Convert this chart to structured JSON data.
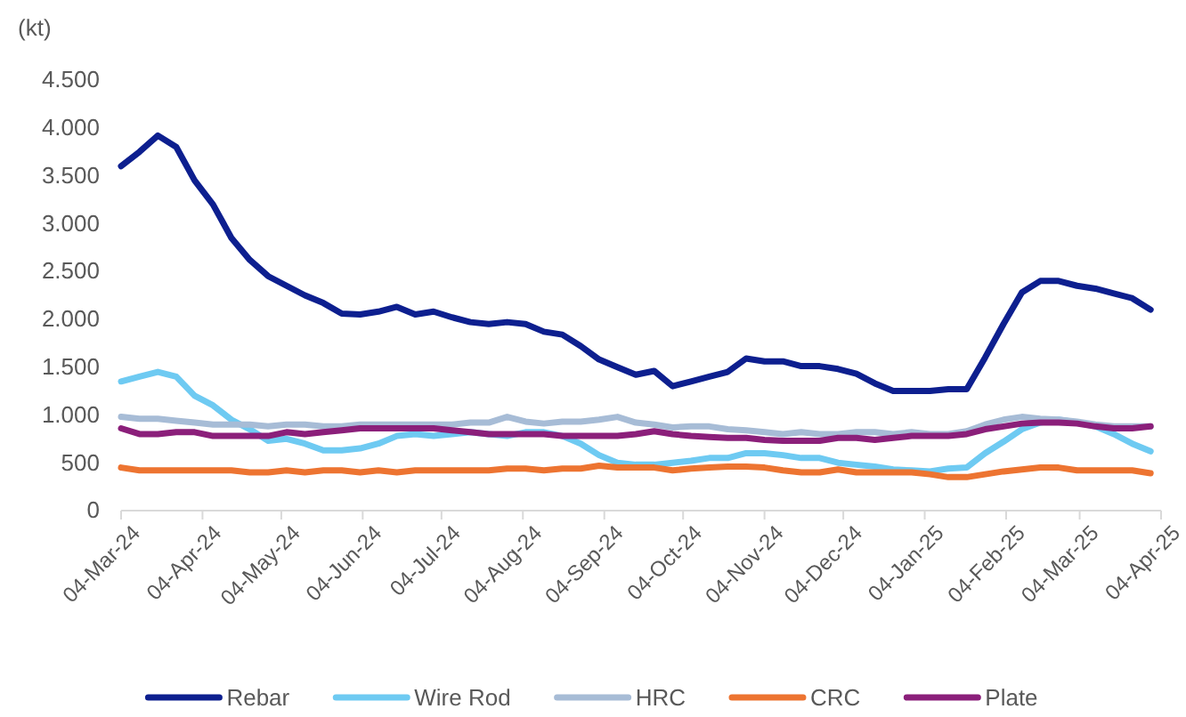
{
  "chart_data": {
    "type": "line",
    "ylabel": "(kt)",
    "x": [
      "2024-03-04",
      "2024-03-11",
      "2024-03-18",
      "2024-03-25",
      "2024-04-01",
      "2024-04-08",
      "2024-04-15",
      "2024-04-22",
      "2024-04-29",
      "2024-05-06",
      "2024-05-13",
      "2024-05-20",
      "2024-05-27",
      "2024-06-03",
      "2024-06-10",
      "2024-06-17",
      "2024-06-24",
      "2024-07-01",
      "2024-07-08",
      "2024-07-15",
      "2024-07-22",
      "2024-07-29",
      "2024-08-05",
      "2024-08-12",
      "2024-08-19",
      "2024-08-26",
      "2024-09-02",
      "2024-09-09",
      "2024-09-16",
      "2024-09-23",
      "2024-09-30",
      "2024-10-07",
      "2024-10-14",
      "2024-10-21",
      "2024-10-28",
      "2024-11-04",
      "2024-11-11",
      "2024-11-18",
      "2024-11-25",
      "2024-12-02",
      "2024-12-09",
      "2024-12-16",
      "2024-12-23",
      "2024-12-30",
      "2025-01-06",
      "2025-01-13",
      "2025-01-20",
      "2025-01-27",
      "2025-02-03",
      "2025-02-10",
      "2025-02-17",
      "2025-02-24",
      "2025-03-03",
      "2025-03-10",
      "2025-03-17",
      "2025-03-24",
      "2025-03-31"
    ],
    "series": [
      {
        "name": "Rebar",
        "color": "#0d1f8f",
        "values": [
          3600,
          3750,
          3920,
          3800,
          3450,
          3200,
          2850,
          2620,
          2450,
          2350,
          2250,
          2170,
          2060,
          2050,
          2080,
          2130,
          2050,
          2080,
          2020,
          1970,
          1950,
          1970,
          1950,
          1870,
          1840,
          1720,
          1580,
          1500,
          1420,
          1460,
          1300,
          1350,
          1400,
          1450,
          1590,
          1560,
          1560,
          1510,
          1510,
          1480,
          1430,
          1330,
          1250,
          1250,
          1250,
          1270,
          1270,
          1600,
          1950,
          2280,
          2400,
          2400,
          2350,
          2320,
          2270,
          2220,
          2100
        ]
      },
      {
        "name": "Wire Rod",
        "color": "#6ecaf2",
        "values": [
          1350,
          1400,
          1450,
          1400,
          1200,
          1100,
          950,
          850,
          730,
          750,
          700,
          630,
          630,
          650,
          700,
          780,
          800,
          780,
          800,
          820,
          800,
          780,
          820,
          820,
          780,
          700,
          580,
          500,
          480,
          480,
          500,
          520,
          550,
          550,
          600,
          600,
          580,
          550,
          550,
          500,
          480,
          460,
          430,
          420,
          410,
          440,
          450,
          600,
          720,
          850,
          920,
          950,
          920,
          880,
          800,
          700,
          620
        ]
      },
      {
        "name": "HRC",
        "color": "#a7bcd6",
        "values": [
          980,
          960,
          960,
          940,
          920,
          900,
          900,
          900,
          880,
          900,
          900,
          880,
          880,
          900,
          900,
          900,
          900,
          900,
          900,
          920,
          920,
          980,
          930,
          910,
          930,
          930,
          950,
          980,
          920,
          900,
          870,
          880,
          880,
          850,
          840,
          820,
          800,
          820,
          800,
          800,
          820,
          820,
          800,
          820,
          800,
          800,
          830,
          900,
          950,
          980,
          960,
          950,
          930,
          900,
          880,
          880,
          880
        ]
      },
      {
        "name": "CRC",
        "color": "#ed7431",
        "values": [
          450,
          420,
          420,
          420,
          420,
          420,
          420,
          400,
          400,
          420,
          400,
          420,
          420,
          400,
          420,
          400,
          420,
          420,
          420,
          420,
          420,
          440,
          440,
          420,
          440,
          440,
          470,
          450,
          450,
          450,
          420,
          440,
          450,
          460,
          460,
          450,
          420,
          400,
          400,
          430,
          400,
          400,
          400,
          400,
          380,
          350,
          350,
          380,
          410,
          430,
          450,
          450,
          420,
          420,
          420,
          420,
          390
        ]
      },
      {
        "name": "Plate",
        "color": "#8b1f7a",
        "values": [
          860,
          800,
          800,
          820,
          820,
          780,
          780,
          780,
          780,
          820,
          800,
          820,
          840,
          860,
          860,
          860,
          860,
          860,
          840,
          820,
          800,
          800,
          800,
          800,
          780,
          780,
          780,
          780,
          800,
          830,
          800,
          780,
          770,
          760,
          760,
          740,
          730,
          730,
          730,
          760,
          760,
          740,
          760,
          780,
          780,
          780,
          800,
          850,
          880,
          910,
          920,
          920,
          910,
          880,
          860,
          860,
          880
        ]
      }
    ],
    "xlim": [
      "2024-03-04",
      "2025-04-04"
    ],
    "xticks": [
      {
        "value": "2024-03-04",
        "label": "04-Mar-24"
      },
      {
        "value": "2024-04-04",
        "label": "04-Apr-24"
      },
      {
        "value": "2024-05-04",
        "label": "04-May-24"
      },
      {
        "value": "2024-06-04",
        "label": "04-Jun-24"
      },
      {
        "value": "2024-07-04",
        "label": "04-Jul-24"
      },
      {
        "value": "2024-08-04",
        "label": "04-Aug-24"
      },
      {
        "value": "2024-09-04",
        "label": "04-Sep-24"
      },
      {
        "value": "2024-10-04",
        "label": "04-Oct-24"
      },
      {
        "value": "2024-11-04",
        "label": "04-Nov-24"
      },
      {
        "value": "2024-12-04",
        "label": "04-Dec-24"
      },
      {
        "value": "2025-01-04",
        "label": "04-Jan-25"
      },
      {
        "value": "2025-02-04",
        "label": "04-Feb-25"
      },
      {
        "value": "2025-03-04",
        "label": "04-Mar-25"
      },
      {
        "value": "2025-04-04",
        "label": "04-Apr-25"
      }
    ],
    "ylim": [
      0,
      4500
    ],
    "yticks": [
      0,
      500,
      {
        "value": 1000,
        "label": "1.000"
      },
      {
        "value": 1500,
        "label": "1.500"
      },
      {
        "value": 2000,
        "label": "2.000"
      },
      {
        "value": 2500,
        "label": "2.500"
      },
      {
        "value": 3000,
        "label": "3.000"
      },
      {
        "value": 3500,
        "label": "3.500"
      },
      {
        "value": 4000,
        "label": "4.000"
      },
      {
        "value": 4500,
        "label": "4.500"
      }
    ],
    "grid": false,
    "legend": "bottom",
    "marker": "none",
    "line_style": "solid"
  }
}
